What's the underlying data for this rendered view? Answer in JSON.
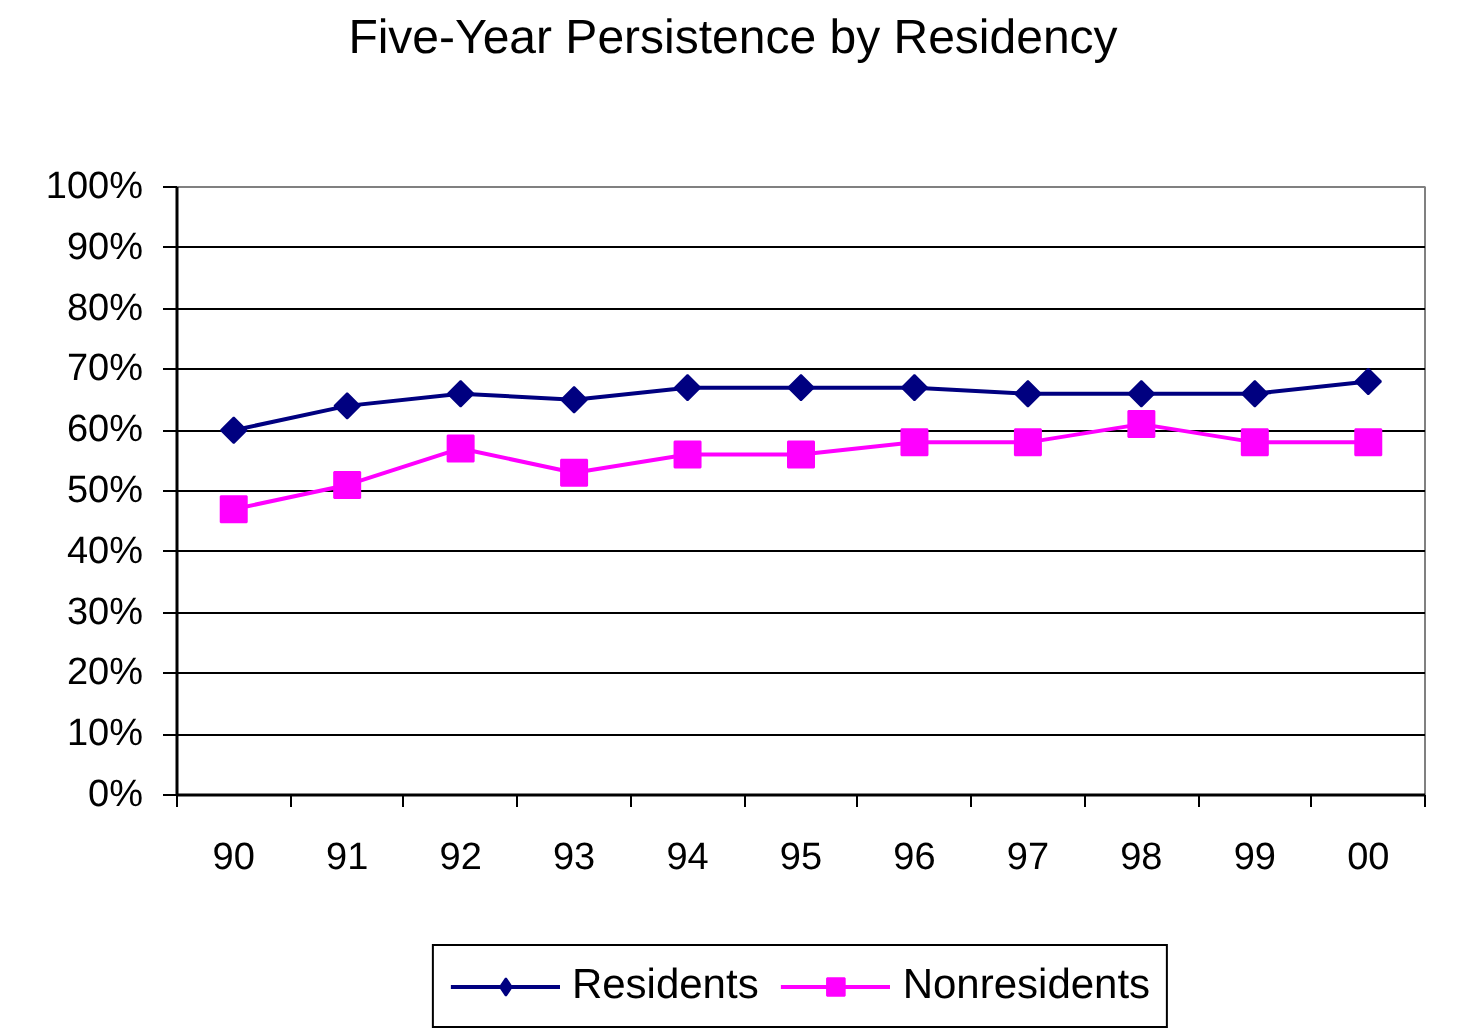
{
  "chart_data": {
    "type": "line",
    "title": "Five-Year Persistence by Residency",
    "categories": [
      "90",
      "91",
      "92",
      "93",
      "94",
      "95",
      "96",
      "97",
      "98",
      "99",
      "00"
    ],
    "series": [
      {
        "name": "Residents",
        "color": "#000080",
        "marker": "diamond",
        "values": [
          60,
          64,
          66,
          65,
          67,
          67,
          67,
          66,
          66,
          66,
          68
        ]
      },
      {
        "name": "Nonresidents",
        "color": "#ff00ff",
        "marker": "square",
        "values": [
          47,
          51,
          57,
          53,
          56,
          56,
          58,
          58,
          61,
          58,
          58
        ]
      }
    ],
    "ylim": [
      0,
      100
    ],
    "yticks": [
      {
        "value": 0,
        "label": "0%"
      },
      {
        "value": 10,
        "label": "10%"
      },
      {
        "value": 20,
        "label": "20%"
      },
      {
        "value": 30,
        "label": "30%"
      },
      {
        "value": 40,
        "label": "40%"
      },
      {
        "value": 50,
        "label": "50%"
      },
      {
        "value": 60,
        "label": "60%"
      },
      {
        "value": 70,
        "label": "70%"
      },
      {
        "value": 80,
        "label": "80%"
      },
      {
        "value": 90,
        "label": "90%"
      },
      {
        "value": 100,
        "label": "100%"
      }
    ],
    "grid": "y",
    "legend": "bottom"
  }
}
